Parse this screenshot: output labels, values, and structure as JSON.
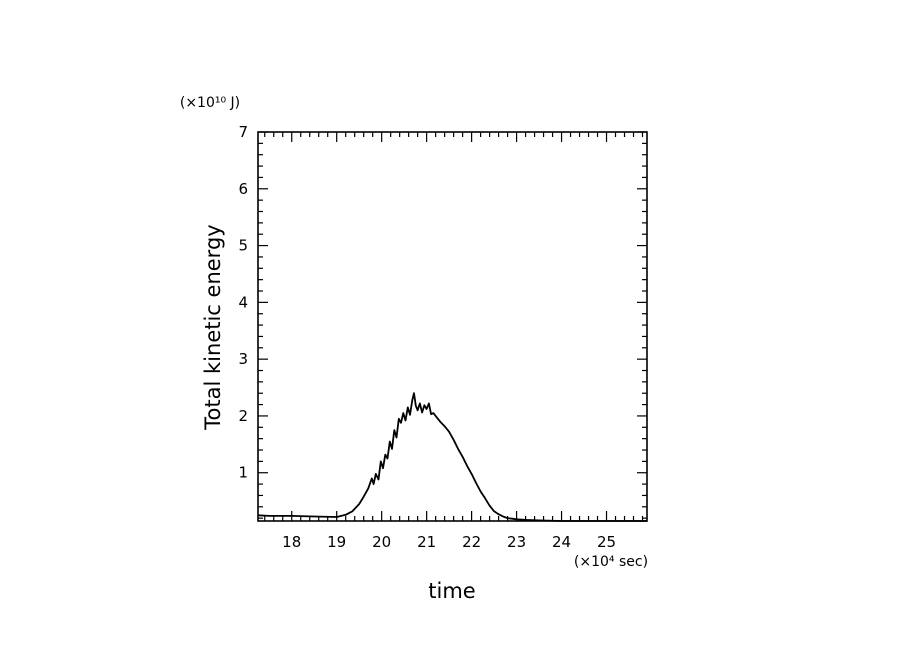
{
  "chart_data": {
    "type": "line",
    "xlabel": "time",
    "ylabel": "Total kinetic energy",
    "x_unit": "(×10⁴ sec)",
    "y_unit": "(×10¹⁰ J)",
    "xlim": [
      17.25,
      25.9
    ],
    "ylim": [
      0.15,
      7.0
    ],
    "x_major_ticks": [
      18,
      19,
      20,
      21,
      22,
      23,
      24,
      25
    ],
    "y_major_ticks": [
      1,
      2,
      3,
      4,
      5,
      6,
      7
    ],
    "grid": false,
    "series": [
      {
        "x": [
          17.25,
          17.5,
          18.0,
          18.5,
          19.0,
          19.2,
          19.35,
          19.5,
          19.6,
          19.7,
          19.78,
          19.82,
          19.87,
          19.93,
          19.98,
          20.03,
          20.08,
          20.13,
          20.18,
          20.23,
          20.28,
          20.33,
          20.38,
          20.43,
          20.48,
          20.53,
          20.58,
          20.63,
          20.68,
          20.72,
          20.76,
          20.8,
          20.85,
          20.9,
          20.95,
          21.0,
          21.05,
          21.1,
          21.15,
          21.2,
          21.3,
          21.4,
          21.5,
          21.6,
          21.7,
          21.8,
          21.9,
          22.0,
          22.1,
          22.2,
          22.3,
          22.4,
          22.5,
          22.6,
          22.7,
          22.8,
          22.9,
          23.0,
          23.2,
          23.5,
          24.0,
          24.5,
          25.0,
          25.5,
          25.9
        ],
        "y": [
          0.25,
          0.24,
          0.24,
          0.23,
          0.22,
          0.26,
          0.32,
          0.45,
          0.58,
          0.72,
          0.9,
          0.8,
          0.98,
          0.88,
          1.2,
          1.08,
          1.32,
          1.25,
          1.55,
          1.42,
          1.75,
          1.62,
          1.95,
          1.88,
          2.05,
          1.92,
          2.15,
          2.02,
          2.28,
          2.4,
          2.18,
          2.1,
          2.22,
          2.06,
          2.19,
          2.12,
          2.22,
          2.03,
          2.05,
          2.0,
          1.9,
          1.82,
          1.72,
          1.58,
          1.42,
          1.28,
          1.12,
          0.98,
          0.82,
          0.67,
          0.55,
          0.42,
          0.32,
          0.27,
          0.23,
          0.2,
          0.19,
          0.18,
          0.17,
          0.16,
          0.15,
          0.15,
          0.15,
          0.15,
          0.15
        ]
      }
    ]
  }
}
